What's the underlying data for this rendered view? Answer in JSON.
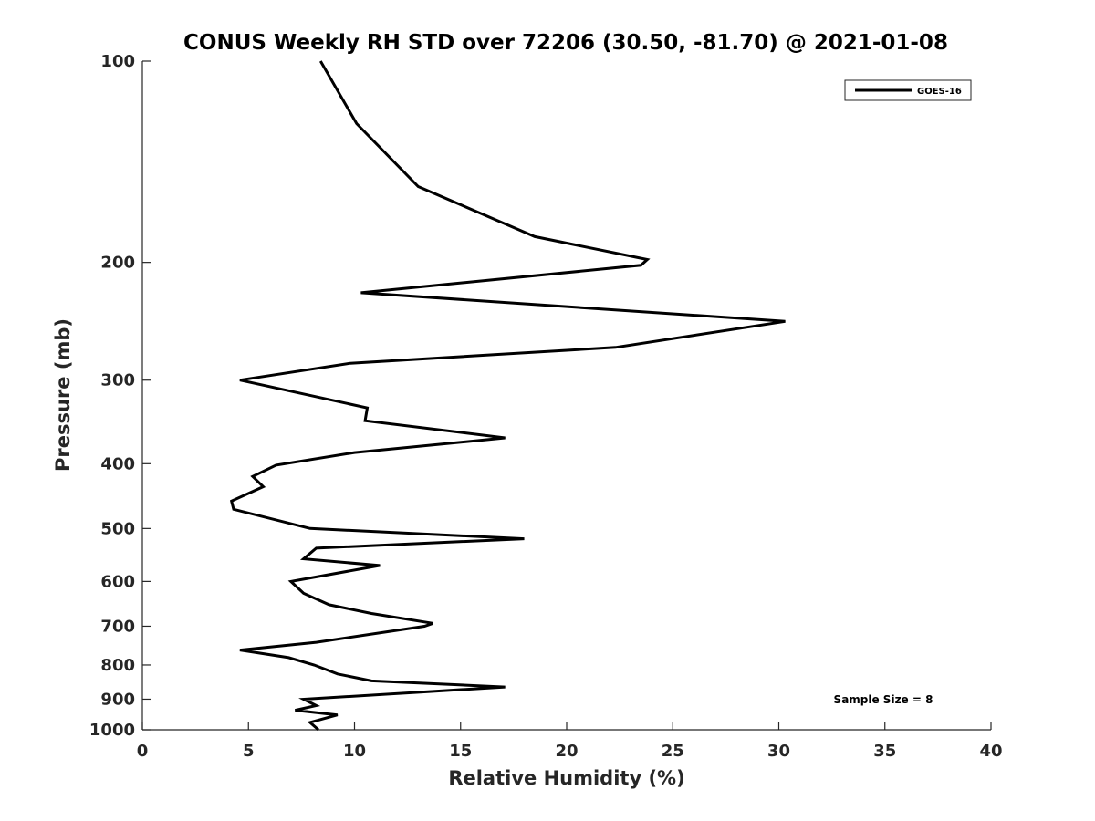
{
  "chart_data": {
    "type": "line",
    "title": "CONUS Weekly RH STD over 72206 (30.50, -81.70) @ 2021-01-08",
    "xlabel": "Relative Humidity (%)",
    "ylabel": "Pressure (mb)",
    "xlim": [
      0,
      40
    ],
    "ylim": [
      100,
      1000
    ],
    "y_scale": "log",
    "y_reversed": true,
    "x_ticks": [
      0,
      5,
      10,
      15,
      20,
      25,
      30,
      35,
      40
    ],
    "y_ticks": [
      100,
      200,
      300,
      400,
      500,
      600,
      700,
      800,
      900,
      1000
    ],
    "grid": false,
    "legend_position": "top-right",
    "annotation": "Sample Size = 8",
    "series": [
      {
        "name": "GOES-16",
        "color": "#000000",
        "points": [
          [
            8.4,
            100
          ],
          [
            10.1,
            124
          ],
          [
            13.0,
            154
          ],
          [
            18.5,
            183
          ],
          [
            23.8,
            198
          ],
          [
            23.5,
            202
          ],
          [
            10.3,
            222
          ],
          [
            30.3,
            245
          ],
          [
            22.3,
            268
          ],
          [
            9.8,
            283
          ],
          [
            4.6,
            300
          ],
          [
            10.6,
            330
          ],
          [
            10.5,
            345
          ],
          [
            17.1,
            366
          ],
          [
            10.0,
            385
          ],
          [
            6.3,
            402
          ],
          [
            5.2,
            418
          ],
          [
            5.7,
            433
          ],
          [
            4.2,
            455
          ],
          [
            4.3,
            468
          ],
          [
            7.9,
            500
          ],
          [
            18.0,
            518
          ],
          [
            8.2,
            535
          ],
          [
            7.6,
            555
          ],
          [
            11.2,
            568
          ],
          [
            7.0,
            600
          ],
          [
            7.6,
            625
          ],
          [
            8.8,
            650
          ],
          [
            10.8,
            670
          ],
          [
            13.7,
            693
          ],
          [
            13.3,
            700
          ],
          [
            8.2,
            740
          ],
          [
            4.6,
            760
          ],
          [
            6.9,
            780
          ],
          [
            8.1,
            800
          ],
          [
            9.2,
            825
          ],
          [
            10.8,
            845
          ],
          [
            17.1,
            863
          ],
          [
            13.2,
            878
          ],
          [
            7.6,
            900
          ],
          [
            8.2,
            920
          ],
          [
            7.2,
            935
          ],
          [
            9.2,
            950
          ],
          [
            7.9,
            975
          ],
          [
            8.3,
            1000
          ]
        ]
      }
    ]
  }
}
